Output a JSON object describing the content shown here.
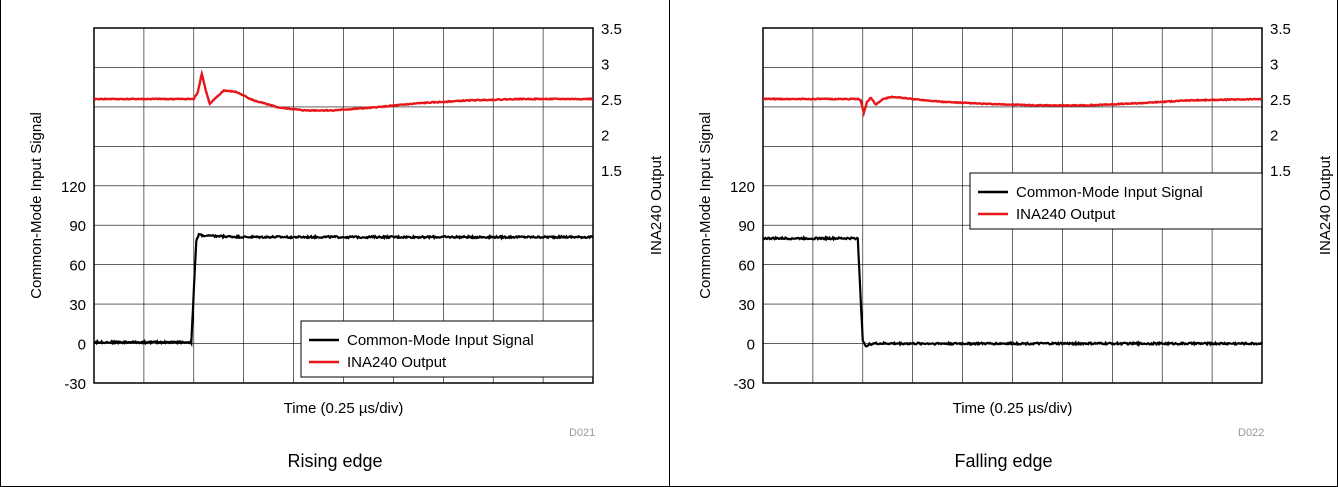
{
  "charts": [
    {
      "caption": "Rising edge",
      "code": "D021"
    },
    {
      "caption": "Falling edge",
      "code": "D022"
    }
  ],
  "chart_data": [
    {
      "type": "line",
      "title": "",
      "xlabel": "Time (0.25 µs/div)",
      "ylabel": "Common-Mode Input Signal",
      "ylabel_right": "INA240 Output",
      "x_divisions": 10,
      "xlim": [
        0,
        10
      ],
      "ylim": [
        -30,
        240
      ],
      "yticks": [
        -30,
        0,
        30,
        60,
        90,
        120
      ],
      "ylim_right": [
        -1.5,
        3.5
      ],
      "yticks_right": [
        1.5,
        2,
        2.5,
        3,
        3.5
      ],
      "grid": true,
      "legend": "bottom-right",
      "colors": {
        "common_mode": "#000000",
        "ina240": "#e8161b"
      },
      "series": [
        {
          "name": "Common-Mode Input Signal",
          "axis": "left",
          "x": [
            0,
            1.95,
            2.0,
            2.05,
            2.1,
            2.2,
            3,
            5,
            7,
            10
          ],
          "values": [
            1,
            1,
            40,
            78,
            83,
            82,
            81,
            81,
            81,
            81
          ]
        },
        {
          "name": "INA240 Output",
          "axis": "right",
          "x": [
            0,
            2.0,
            2.08,
            2.16,
            2.24,
            2.32,
            2.45,
            2.6,
            2.85,
            3.2,
            3.7,
            4.2,
            4.8,
            5.6,
            6.5,
            7.5,
            8.5,
            10
          ],
          "values": [
            2.5,
            2.5,
            2.6,
            2.86,
            2.62,
            2.43,
            2.52,
            2.62,
            2.6,
            2.48,
            2.38,
            2.34,
            2.34,
            2.38,
            2.44,
            2.48,
            2.5,
            2.5
          ]
        }
      ]
    },
    {
      "type": "line",
      "title": "",
      "xlabel": "Time (0.25 µs/div)",
      "ylabel": "Common-Mode Input Signal",
      "ylabel_right": "INA240 Output",
      "x_divisions": 10,
      "xlim": [
        0,
        10
      ],
      "ylim": [
        -30,
        240
      ],
      "yticks": [
        -30,
        0,
        30,
        60,
        90,
        120
      ],
      "ylim_right": [
        -1.5,
        3.5
      ],
      "yticks_right": [
        1.5,
        2,
        2.5,
        3,
        3.5
      ],
      "grid": true,
      "legend": "top-right",
      "colors": {
        "common_mode": "#000000",
        "ina240": "#e8161b"
      },
      "series": [
        {
          "name": "Common-Mode Input Signal",
          "axis": "left",
          "x": [
            0,
            1.9,
            1.95,
            2.0,
            2.05,
            2.1,
            2.2,
            4,
            7,
            10
          ],
          "values": [
            80,
            80,
            40,
            2,
            -2,
            -1,
            0,
            0,
            0,
            0
          ]
        },
        {
          "name": "INA240 Output",
          "axis": "right",
          "x": [
            0,
            1.9,
            1.96,
            2.02,
            2.08,
            2.16,
            2.26,
            2.4,
            2.6,
            3.0,
            3.6,
            4.5,
            5.5,
            6.5,
            7.5,
            8.5,
            10
          ],
          "values": [
            2.5,
            2.5,
            2.48,
            2.3,
            2.45,
            2.52,
            2.42,
            2.5,
            2.53,
            2.5,
            2.46,
            2.43,
            2.41,
            2.41,
            2.44,
            2.48,
            2.5
          ]
        }
      ]
    }
  ]
}
